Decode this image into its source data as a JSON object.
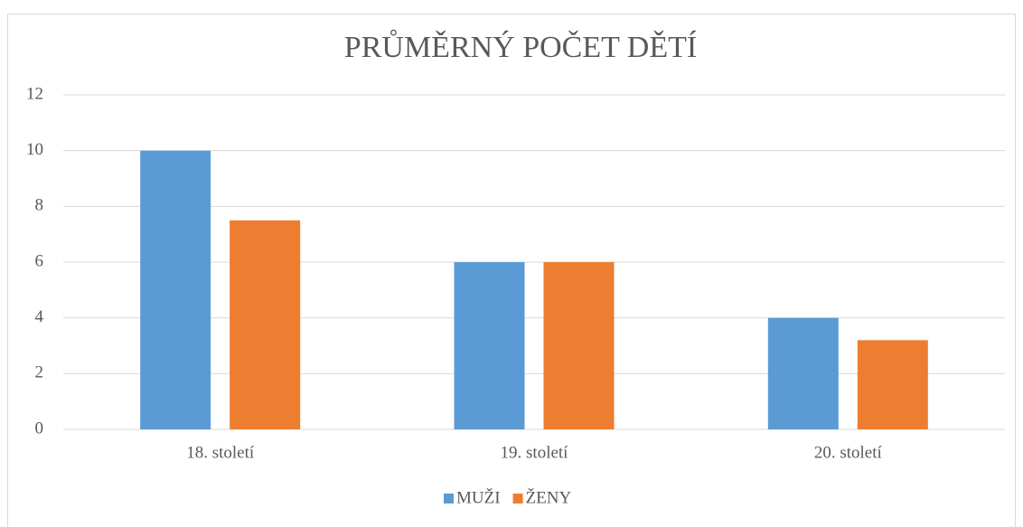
{
  "chart_data": {
    "type": "bar",
    "title": "PRŮMĚRNÝ POČET DĚTÍ",
    "categories": [
      "18. století",
      "19. století",
      "20. století"
    ],
    "series": [
      {
        "name": "MUŽI",
        "color": "#5b9bd5",
        "values": [
          10,
          6,
          4
        ]
      },
      {
        "name": "ŽENY",
        "color": "#ed7d31",
        "values": [
          7.5,
          6,
          3.2
        ]
      }
    ],
    "ylim": [
      0,
      12
    ],
    "yticks": [
      0,
      2,
      4,
      6,
      8,
      10,
      12
    ],
    "grid": true,
    "legend": "bottom"
  }
}
